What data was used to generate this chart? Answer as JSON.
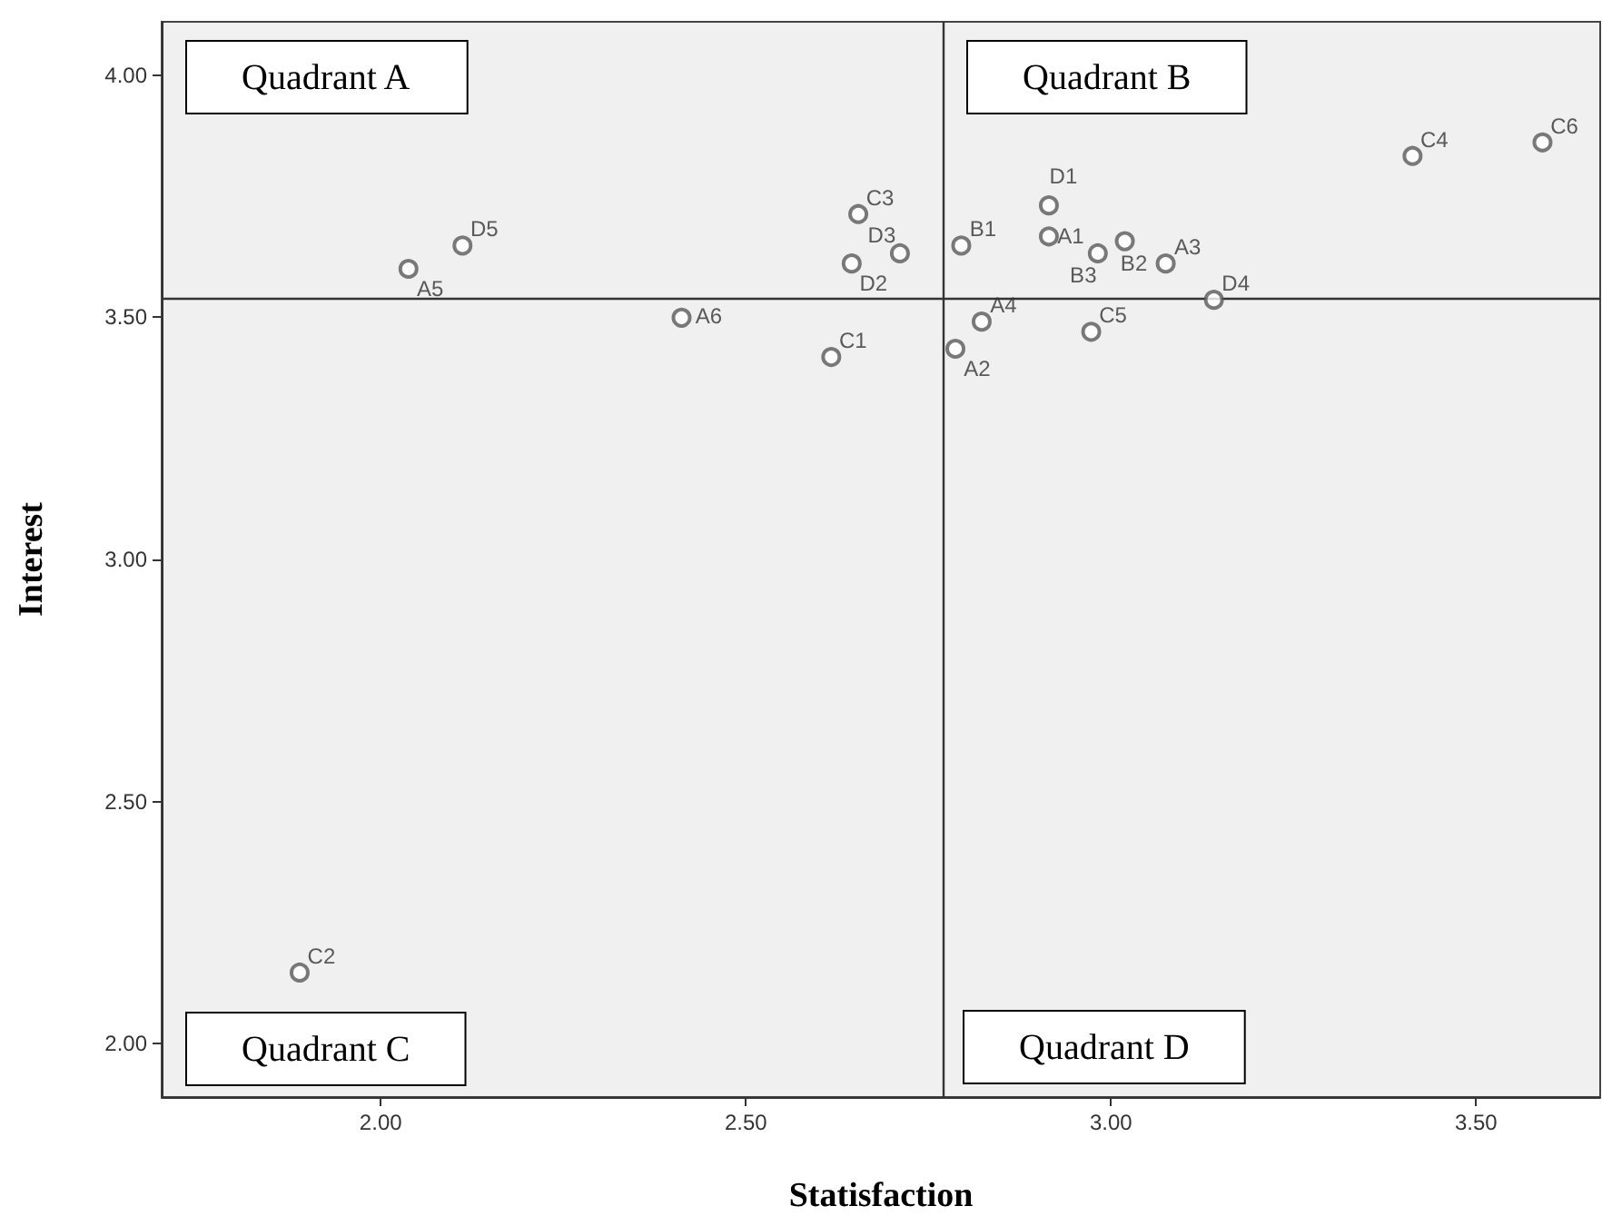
{
  "chart_data": {
    "type": "scatter",
    "xlabel": "Statisfaction",
    "ylabel": "Interest",
    "xlim": [
      1.7,
      3.67
    ],
    "ylim": [
      1.89,
      4.11
    ],
    "xticks": [
      {
        "value": 2,
        "label": "2.00"
      },
      {
        "value": 2.5,
        "label": "2.50"
      },
      {
        "value": 3,
        "label": "3.00"
      },
      {
        "value": 3.5,
        "label": "3.50"
      }
    ],
    "yticks": [
      {
        "value": 2,
        "label": "2.00"
      },
      {
        "value": 2.5,
        "label": "2.50"
      },
      {
        "value": 3,
        "label": "3.00"
      },
      {
        "value": 3.5,
        "label": "3.50"
      },
      {
        "value": 4,
        "label": "4.00"
      }
    ],
    "series": [
      {
        "name": "A1",
        "color": "#595959",
        "x": [
          2.915
        ],
        "values": [
          3.667
        ]
      },
      {
        "name": "A2",
        "color": "#595959",
        "x": [
          2.787
        ],
        "values": [
          3.435
        ]
      },
      {
        "name": "A3",
        "color": "#595959",
        "x": [
          3.075
        ],
        "values": [
          3.611
        ]
      },
      {
        "name": "A4",
        "color": "#595959",
        "x": [
          2.823
        ],
        "values": [
          3.491
        ]
      },
      {
        "name": "A5",
        "color": "#595959",
        "x": [
          2.038
        ],
        "values": [
          3.6
        ]
      },
      {
        "name": "A6",
        "color": "#595959",
        "x": [
          2.412
        ],
        "values": [
          3.499
        ]
      },
      {
        "name": "B1",
        "color": "#595959",
        "x": [
          2.795
        ],
        "values": [
          3.648
        ]
      },
      {
        "name": "B2",
        "color": "#595959",
        "x": [
          3.019
        ],
        "values": [
          3.657
        ]
      },
      {
        "name": "B3",
        "color": "#595959",
        "x": [
          2.982
        ],
        "values": [
          3.632
        ]
      },
      {
        "name": "C1",
        "color": "#595959",
        "x": [
          2.617
        ],
        "values": [
          3.418
        ]
      },
      {
        "name": "C2",
        "color": "#595959",
        "x": [
          1.889
        ],
        "values": [
          2.147
        ]
      },
      {
        "name": "C3",
        "color": "#595959",
        "x": [
          2.654
        ],
        "values": [
          3.713
        ]
      },
      {
        "name": "C4",
        "color": "#595959",
        "x": [
          3.413
        ],
        "values": [
          3.833
        ]
      },
      {
        "name": "C5",
        "color": "#595959",
        "x": [
          2.973
        ],
        "values": [
          3.47
        ]
      },
      {
        "name": "C6",
        "color": "#595959",
        "x": [
          3.591
        ],
        "values": [
          3.861
        ]
      },
      {
        "name": "D1",
        "color": "#595959",
        "x": [
          2.915
        ],
        "values": [
          3.731
        ]
      },
      {
        "name": "D2",
        "color": "#595959",
        "x": [
          2.645
        ],
        "values": [
          3.611
        ]
      },
      {
        "name": "D3",
        "color": "#595959",
        "x": [
          2.711
        ],
        "values": [
          3.632
        ]
      },
      {
        "name": "D4",
        "color": "#595959",
        "x": [
          3.141
        ],
        "values": [
          3.536
        ]
      },
      {
        "name": "D5",
        "color": "#595959",
        "x": [
          2.112
        ],
        "values": [
          3.648
        ]
      }
    ],
    "ref_lines": [
      {
        "axis": "x",
        "value": 2.773,
        "color": "#333333"
      },
      {
        "axis": "y",
        "value": 3.538,
        "color": "#333333"
      }
    ],
    "annotations": [
      "Quadrant A",
      "Quadrant B",
      "Quadrant C",
      "Quadrant D"
    ],
    "marker": "circle",
    "grid": false,
    "legend": false
  }
}
